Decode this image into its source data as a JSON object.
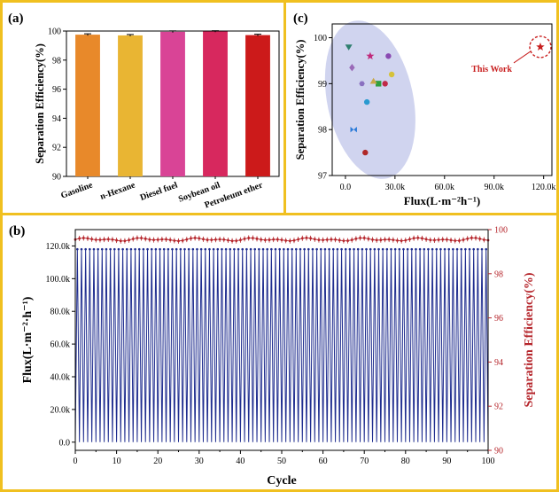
{
  "chart_data": [
    {
      "panel": "(a)",
      "type": "bar",
      "categories": [
        "Gasoline",
        "n-Hexane",
        "Diesel fuel",
        "Soybean oil",
        "Petroleum ether"
      ],
      "values": [
        99.75,
        99.7,
        99.95,
        99.97,
        99.72
      ],
      "errors": [
        0.06,
        0.06,
        0.06,
        0.05,
        0.06
      ],
      "colors": [
        "#e8892a",
        "#e9b533",
        "#d94496",
        "#d7285e",
        "#cc1a1a"
      ],
      "ylabel": "Separation Efficiency(%)",
      "xlabel": "",
      "ylim": [
        90,
        100
      ],
      "yticks": [
        "90",
        "92",
        "94",
        "96",
        "98",
        "100"
      ]
    },
    {
      "panel": "(c)",
      "type": "scatter",
      "xlabel": "Flux(L·m⁻²h⁻¹)",
      "ylabel": "Separation Efficiency(%)",
      "xlim": [
        -8000,
        125000
      ],
      "ylim": [
        97,
        100.3
      ],
      "xticks": [
        {
          "v": 0,
          "t": "0.0"
        },
        {
          "v": 30000,
          "t": "30.0k"
        },
        {
          "v": 60000,
          "t": "60.0k"
        },
        {
          "v": 90000,
          "t": "90.0k"
        },
        {
          "v": 120000,
          "t": "120.0k"
        }
      ],
      "yticks": [
        {
          "v": 97,
          "t": "97"
        },
        {
          "v": 98,
          "t": "98"
        },
        {
          "v": 99,
          "t": "99"
        },
        {
          "v": 100,
          "t": "100"
        }
      ],
      "points": [
        {
          "x": 2000,
          "y": 99.8,
          "color": "#2f7f6f",
          "marker": "tri-down"
        },
        {
          "x": 4000,
          "y": 99.35,
          "color": "#9a6ab8",
          "marker": "diamond"
        },
        {
          "x": 15000,
          "y": 99.6,
          "color": "#c0287a",
          "marker": "star"
        },
        {
          "x": 26000,
          "y": 99.6,
          "color": "#8a4ab2",
          "marker": "circle"
        },
        {
          "x": 28000,
          "y": 99.2,
          "color": "#d6c23a",
          "marker": "circle"
        },
        {
          "x": 20000,
          "y": 99.0,
          "color": "#2f9f3f",
          "marker": "square"
        },
        {
          "x": 24000,
          "y": 99.0,
          "color": "#c02a48",
          "marker": "circle"
        },
        {
          "x": 10000,
          "y": 99.0,
          "color": "#8a70c0",
          "marker": "hex"
        },
        {
          "x": 17000,
          "y": 99.05,
          "color": "#c8a848",
          "marker": "tri-up"
        },
        {
          "x": 13000,
          "y": 98.6,
          "color": "#2a9ad0",
          "marker": "circle"
        },
        {
          "x": 5000,
          "y": 98.0,
          "color": "#2a7ad8",
          "marker": "bowtie"
        },
        {
          "x": 12000,
          "y": 97.5,
          "color": "#b02828",
          "marker": "circle"
        }
      ],
      "region": {
        "cx": 15000,
        "cy": 98.65,
        "rx": 26000,
        "ry": 1.75,
        "color": "#c8cdec"
      },
      "highlight": {
        "x": 118000,
        "y": 99.8,
        "label": "This Work",
        "color": "#c81e1e"
      }
    },
    {
      "panel": "(b)",
      "type": "line",
      "xlabel": "Cycle",
      "ylabel_left": "Flux(L·m⁻²·h⁻¹)",
      "ylabel_right": "Separation Efficiency(%)",
      "xlim": [
        0,
        100
      ],
      "xticks": [
        0,
        10,
        20,
        30,
        40,
        50,
        60,
        70,
        80,
        90,
        100
      ],
      "ylim_left": [
        -5000,
        130000
      ],
      "yticks_left": [
        {
          "v": 0,
          "t": "0.0"
        },
        {
          "v": 20000,
          "t": "20.0k"
        },
        {
          "v": 40000,
          "t": "40.0k"
        },
        {
          "v": 60000,
          "t": "60.0k"
        },
        {
          "v": 80000,
          "t": "80.0k"
        },
        {
          "v": 100000,
          "t": "100.0k"
        },
        {
          "v": 120000,
          "t": "120.0k"
        }
      ],
      "ylim_right": [
        90,
        100
      ],
      "yticks_right": [
        90,
        92,
        94,
        96,
        98,
        100
      ],
      "series": [
        {
          "axis": "left",
          "color": "#1f2d8f",
          "cycles": 100,
          "high": 118000,
          "low": 0
        },
        {
          "axis": "right",
          "color": "#b5252b",
          "cycles": 100,
          "mean": 99.55,
          "amplitude": 0.08
        }
      ]
    }
  ]
}
